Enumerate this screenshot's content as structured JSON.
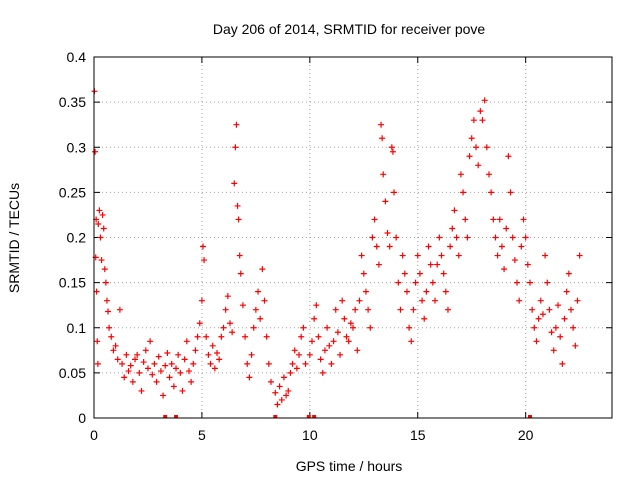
{
  "chart_data": {
    "type": "scatter",
    "title": "Day 206 of 2014, SRMTID for receiver pove",
    "xlabel": "GPS time / hours",
    "ylabel": "SRMTID / TECUs",
    "xlim": [
      0,
      24
    ],
    "ylim": [
      0,
      0.4
    ],
    "x_ticks": [
      0,
      5,
      10,
      15,
      20
    ],
    "x_tick_labels": [
      "0",
      "5",
      "10",
      "15",
      "20"
    ],
    "y_ticks": [
      0,
      0.05,
      0.1,
      0.15,
      0.2,
      0.25,
      0.3,
      0.35,
      0.4
    ],
    "y_tick_labels": [
      "0",
      "0.05",
      "0.1",
      "0.15",
      "0.2",
      "0.25",
      "0.3",
      "0.35",
      "0.4"
    ],
    "grid": true,
    "marker": "plus",
    "series": [
      {
        "name": "SRMTID",
        "color": "#ff0000",
        "points": [
          [
            0.02,
            0.362
          ],
          [
            0.05,
            0.295
          ],
          [
            0.08,
            0.178
          ],
          [
            0.1,
            0.22
          ],
          [
            0.12,
            0.14
          ],
          [
            0.15,
            0.085
          ],
          [
            0.18,
            0.06
          ],
          [
            0.2,
            0.215
          ],
          [
            0.25,
            0.23
          ],
          [
            0.3,
            0.2
          ],
          [
            0.35,
            0.175
          ],
          [
            0.4,
            0.225
          ],
          [
            0.45,
            0.21
          ],
          [
            0.5,
            0.165
          ],
          [
            0.55,
            0.15
          ],
          [
            0.6,
            0.13
          ],
          [
            0.65,
            0.118
          ],
          [
            0.7,
            0.1
          ],
          [
            0.8,
            0.09
          ],
          [
            0.9,
            0.075
          ],
          [
            1.0,
            0.08
          ],
          [
            1.1,
            0.065
          ],
          [
            1.2,
            0.12
          ],
          [
            1.3,
            0.06
          ],
          [
            1.4,
            0.045
          ],
          [
            1.5,
            0.07
          ],
          [
            1.6,
            0.052
          ],
          [
            1.7,
            0.058
          ],
          [
            1.8,
            0.04
          ],
          [
            1.9,
            0.065
          ],
          [
            2.0,
            0.07
          ],
          [
            2.1,
            0.05
          ],
          [
            2.2,
            0.03
          ],
          [
            2.3,
            0.062
          ],
          [
            2.4,
            0.075
          ],
          [
            2.5,
            0.055
          ],
          [
            2.6,
            0.085
          ],
          [
            2.7,
            0.048
          ],
          [
            2.8,
            0.06
          ],
          [
            2.9,
            0.04
          ],
          [
            3.0,
            0.068
          ],
          [
            3.1,
            0.052
          ],
          [
            3.2,
            0.025
          ],
          [
            3.3,
            0.058
          ],
          [
            3.4,
            0.072
          ],
          [
            3.5,
            0.045
          ],
          [
            3.6,
            0.06
          ],
          [
            3.7,
            0.035
          ],
          [
            3.8,
            0.055
          ],
          [
            3.9,
            0.07
          ],
          [
            4.0,
            0.05
          ],
          [
            4.1,
            0.03
          ],
          [
            4.2,
            0.065
          ],
          [
            4.3,
            0.085
          ],
          [
            4.4,
            0.052
          ],
          [
            4.5,
            0.04
          ],
          [
            4.6,
            0.06
          ],
          [
            4.7,
            0.075
          ],
          [
            4.8,
            0.09
          ],
          [
            4.9,
            0.105
          ],
          [
            5.0,
            0.13
          ],
          [
            5.05,
            0.19
          ],
          [
            5.1,
            0.175
          ],
          [
            5.2,
            0.09
          ],
          [
            5.3,
            0.07
          ],
          [
            5.4,
            0.06
          ],
          [
            5.5,
            0.08
          ],
          [
            5.6,
            0.055
          ],
          [
            5.7,
            0.072
          ],
          [
            5.8,
            0.065
          ],
          [
            5.9,
            0.09
          ],
          [
            6.0,
            0.1
          ],
          [
            6.1,
            0.12
          ],
          [
            6.2,
            0.135
          ],
          [
            6.3,
            0.105
          ],
          [
            6.4,
            0.095
          ],
          [
            6.5,
            0.26
          ],
          [
            6.55,
            0.3
          ],
          [
            6.6,
            0.325
          ],
          [
            6.65,
            0.235
          ],
          [
            6.7,
            0.22
          ],
          [
            6.75,
            0.18
          ],
          [
            6.8,
            0.16
          ],
          [
            6.9,
            0.125
          ],
          [
            7.0,
            0.09
          ],
          [
            7.1,
            0.06
          ],
          [
            7.2,
            0.045
          ],
          [
            7.3,
            0.07
          ],
          [
            7.4,
            0.1
          ],
          [
            7.5,
            0.12
          ],
          [
            7.6,
            0.14
          ],
          [
            7.7,
            0.11
          ],
          [
            7.8,
            0.165
          ],
          [
            7.9,
            0.13
          ],
          [
            8.0,
            0.09
          ],
          [
            8.1,
            0.06
          ],
          [
            8.2,
            0.04
          ],
          [
            8.4,
            0.028
          ],
          [
            8.5,
            0.015
          ],
          [
            8.6,
            0.035
          ],
          [
            8.7,
            0.02
          ],
          [
            8.8,
            0.045
          ],
          [
            8.9,
            0.025
          ],
          [
            9.0,
            0.03
          ],
          [
            9.1,
            0.05
          ],
          [
            9.2,
            0.06
          ],
          [
            9.3,
            0.075
          ],
          [
            9.4,
            0.055
          ],
          [
            9.5,
            0.07
          ],
          [
            9.6,
            0.09
          ],
          [
            9.7,
            0.1
          ],
          [
            9.8,
            0.06
          ],
          [
            10.0,
            0.07
          ],
          [
            10.1,
            0.085
          ],
          [
            10.2,
            0.11
          ],
          [
            10.3,
            0.125
          ],
          [
            10.4,
            0.09
          ],
          [
            10.5,
            0.065
          ],
          [
            10.6,
            0.05
          ],
          [
            10.7,
            0.075
          ],
          [
            10.8,
            0.1
          ],
          [
            10.9,
            0.08
          ],
          [
            11.0,
            0.06
          ],
          [
            11.1,
            0.085
          ],
          [
            11.2,
            0.12
          ],
          [
            11.3,
            0.095
          ],
          [
            11.4,
            0.07
          ],
          [
            11.5,
            0.13
          ],
          [
            11.6,
            0.11
          ],
          [
            11.7,
            0.09
          ],
          [
            11.8,
            0.085
          ],
          [
            11.9,
            0.105
          ],
          [
            12.0,
            0.1
          ],
          [
            12.1,
            0.12
          ],
          [
            12.2,
            0.075
          ],
          [
            12.3,
            0.13
          ],
          [
            12.4,
            0.18
          ],
          [
            12.5,
            0.16
          ],
          [
            12.6,
            0.14
          ],
          [
            12.7,
            0.12
          ],
          [
            12.8,
            0.1
          ],
          [
            12.9,
            0.2
          ],
          [
            13.0,
            0.22
          ],
          [
            13.1,
            0.19
          ],
          [
            13.2,
            0.17
          ],
          [
            13.3,
            0.325
          ],
          [
            13.35,
            0.31
          ],
          [
            13.4,
            0.27
          ],
          [
            13.5,
            0.24
          ],
          [
            13.6,
            0.205
          ],
          [
            13.7,
            0.19
          ],
          [
            13.8,
            0.3
          ],
          [
            13.85,
            0.295
          ],
          [
            13.9,
            0.25
          ],
          [
            14.0,
            0.2
          ],
          [
            14.1,
            0.15
          ],
          [
            14.2,
            0.12
          ],
          [
            14.3,
            0.18
          ],
          [
            14.4,
            0.16
          ],
          [
            14.5,
            0.14
          ],
          [
            14.6,
            0.1
          ],
          [
            14.7,
            0.085
          ],
          [
            14.8,
            0.12
          ],
          [
            14.9,
            0.15
          ],
          [
            15.0,
            0.18
          ],
          [
            15.1,
            0.16
          ],
          [
            15.2,
            0.13
          ],
          [
            15.3,
            0.11
          ],
          [
            15.4,
            0.14
          ],
          [
            15.5,
            0.19
          ],
          [
            15.6,
            0.17
          ],
          [
            15.7,
            0.15
          ],
          [
            15.8,
            0.13
          ],
          [
            15.9,
            0.17
          ],
          [
            16.0,
            0.2
          ],
          [
            16.1,
            0.18
          ],
          [
            16.2,
            0.16
          ],
          [
            16.3,
            0.14
          ],
          [
            16.4,
            0.12
          ],
          [
            16.5,
            0.19
          ],
          [
            16.6,
            0.21
          ],
          [
            16.7,
            0.23
          ],
          [
            16.8,
            0.2
          ],
          [
            16.9,
            0.18
          ],
          [
            17.0,
            0.27
          ],
          [
            17.1,
            0.25
          ],
          [
            17.2,
            0.22
          ],
          [
            17.3,
            0.2
          ],
          [
            17.4,
            0.29
          ],
          [
            17.5,
            0.31
          ],
          [
            17.6,
            0.33
          ],
          [
            17.7,
            0.3
          ],
          [
            17.8,
            0.28
          ],
          [
            17.9,
            0.34
          ],
          [
            18.0,
            0.33
          ],
          [
            18.1,
            0.352
          ],
          [
            18.2,
            0.3
          ],
          [
            18.3,
            0.27
          ],
          [
            18.4,
            0.25
          ],
          [
            18.5,
            0.22
          ],
          [
            18.6,
            0.2
          ],
          [
            18.7,
            0.18
          ],
          [
            18.8,
            0.22
          ],
          [
            18.9,
            0.19
          ],
          [
            19.0,
            0.165
          ],
          [
            19.1,
            0.21
          ],
          [
            19.2,
            0.29
          ],
          [
            19.3,
            0.25
          ],
          [
            19.4,
            0.2
          ],
          [
            19.5,
            0.175
          ],
          [
            19.6,
            0.15
          ],
          [
            19.7,
            0.13
          ],
          [
            19.8,
            0.19
          ],
          [
            19.9,
            0.22
          ],
          [
            20.0,
            0.2
          ],
          [
            20.1,
            0.17
          ],
          [
            20.2,
            0.15
          ],
          [
            20.3,
            0.12
          ],
          [
            20.4,
            0.1
          ],
          [
            20.5,
            0.085
          ],
          [
            20.6,
            0.11
          ],
          [
            20.7,
            0.13
          ],
          [
            20.8,
            0.115
          ],
          [
            20.9,
            0.18
          ],
          [
            21.0,
            0.15
          ],
          [
            21.1,
            0.12
          ],
          [
            21.2,
            0.095
          ],
          [
            21.3,
            0.075
          ],
          [
            21.4,
            0.1
          ],
          [
            21.5,
            0.125
          ],
          [
            21.6,
            0.09
          ],
          [
            21.7,
            0.06
          ],
          [
            21.8,
            0.11
          ],
          [
            21.9,
            0.14
          ],
          [
            22.0,
            0.16
          ],
          [
            22.1,
            0.12
          ],
          [
            22.2,
            0.1
          ],
          [
            22.3,
            0.08
          ],
          [
            22.4,
            0.13
          ],
          [
            22.5,
            0.18
          ]
        ]
      }
    ],
    "zero_markers": [
      3.3,
      3.8,
      8.4,
      9.95,
      10.2,
      20.2
    ]
  }
}
